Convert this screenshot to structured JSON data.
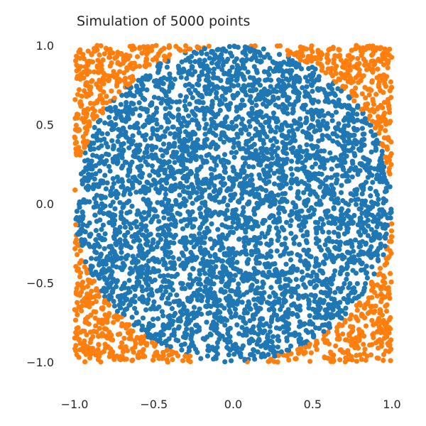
{
  "chart_data": {
    "type": "scatter",
    "title": "Simulation of 5000 points",
    "xlabel": "",
    "ylabel": "",
    "xlim": [
      -1.0,
      1.0
    ],
    "ylim": [
      -1.0,
      1.0
    ],
    "x_ticks": [
      -1.0,
      -0.5,
      0.0,
      0.5,
      1.0
    ],
    "y_ticks": [
      -1.0,
      -0.5,
      0.0,
      0.5,
      1.0
    ],
    "x_tick_labels": [
      "−1.0",
      "−0.5",
      "0.0",
      "0.5",
      "1.0"
    ],
    "y_tick_labels": [
      "−1.0",
      "−0.5",
      "0.0",
      "0.5",
      "1.0"
    ],
    "grid": false,
    "legend": "none",
    "n_points": 5000,
    "distribution": "uniform over the square [-1, 1] x [-1, 1]",
    "series": [
      {
        "rule": "inside unit circle (x^2 + y^2 <= 1)",
        "color": "#1f77b4"
      },
      {
        "rule": "outside unit circle (x^2 + y^2 > 1)",
        "color": "#ff7f0e"
      }
    ]
  }
}
